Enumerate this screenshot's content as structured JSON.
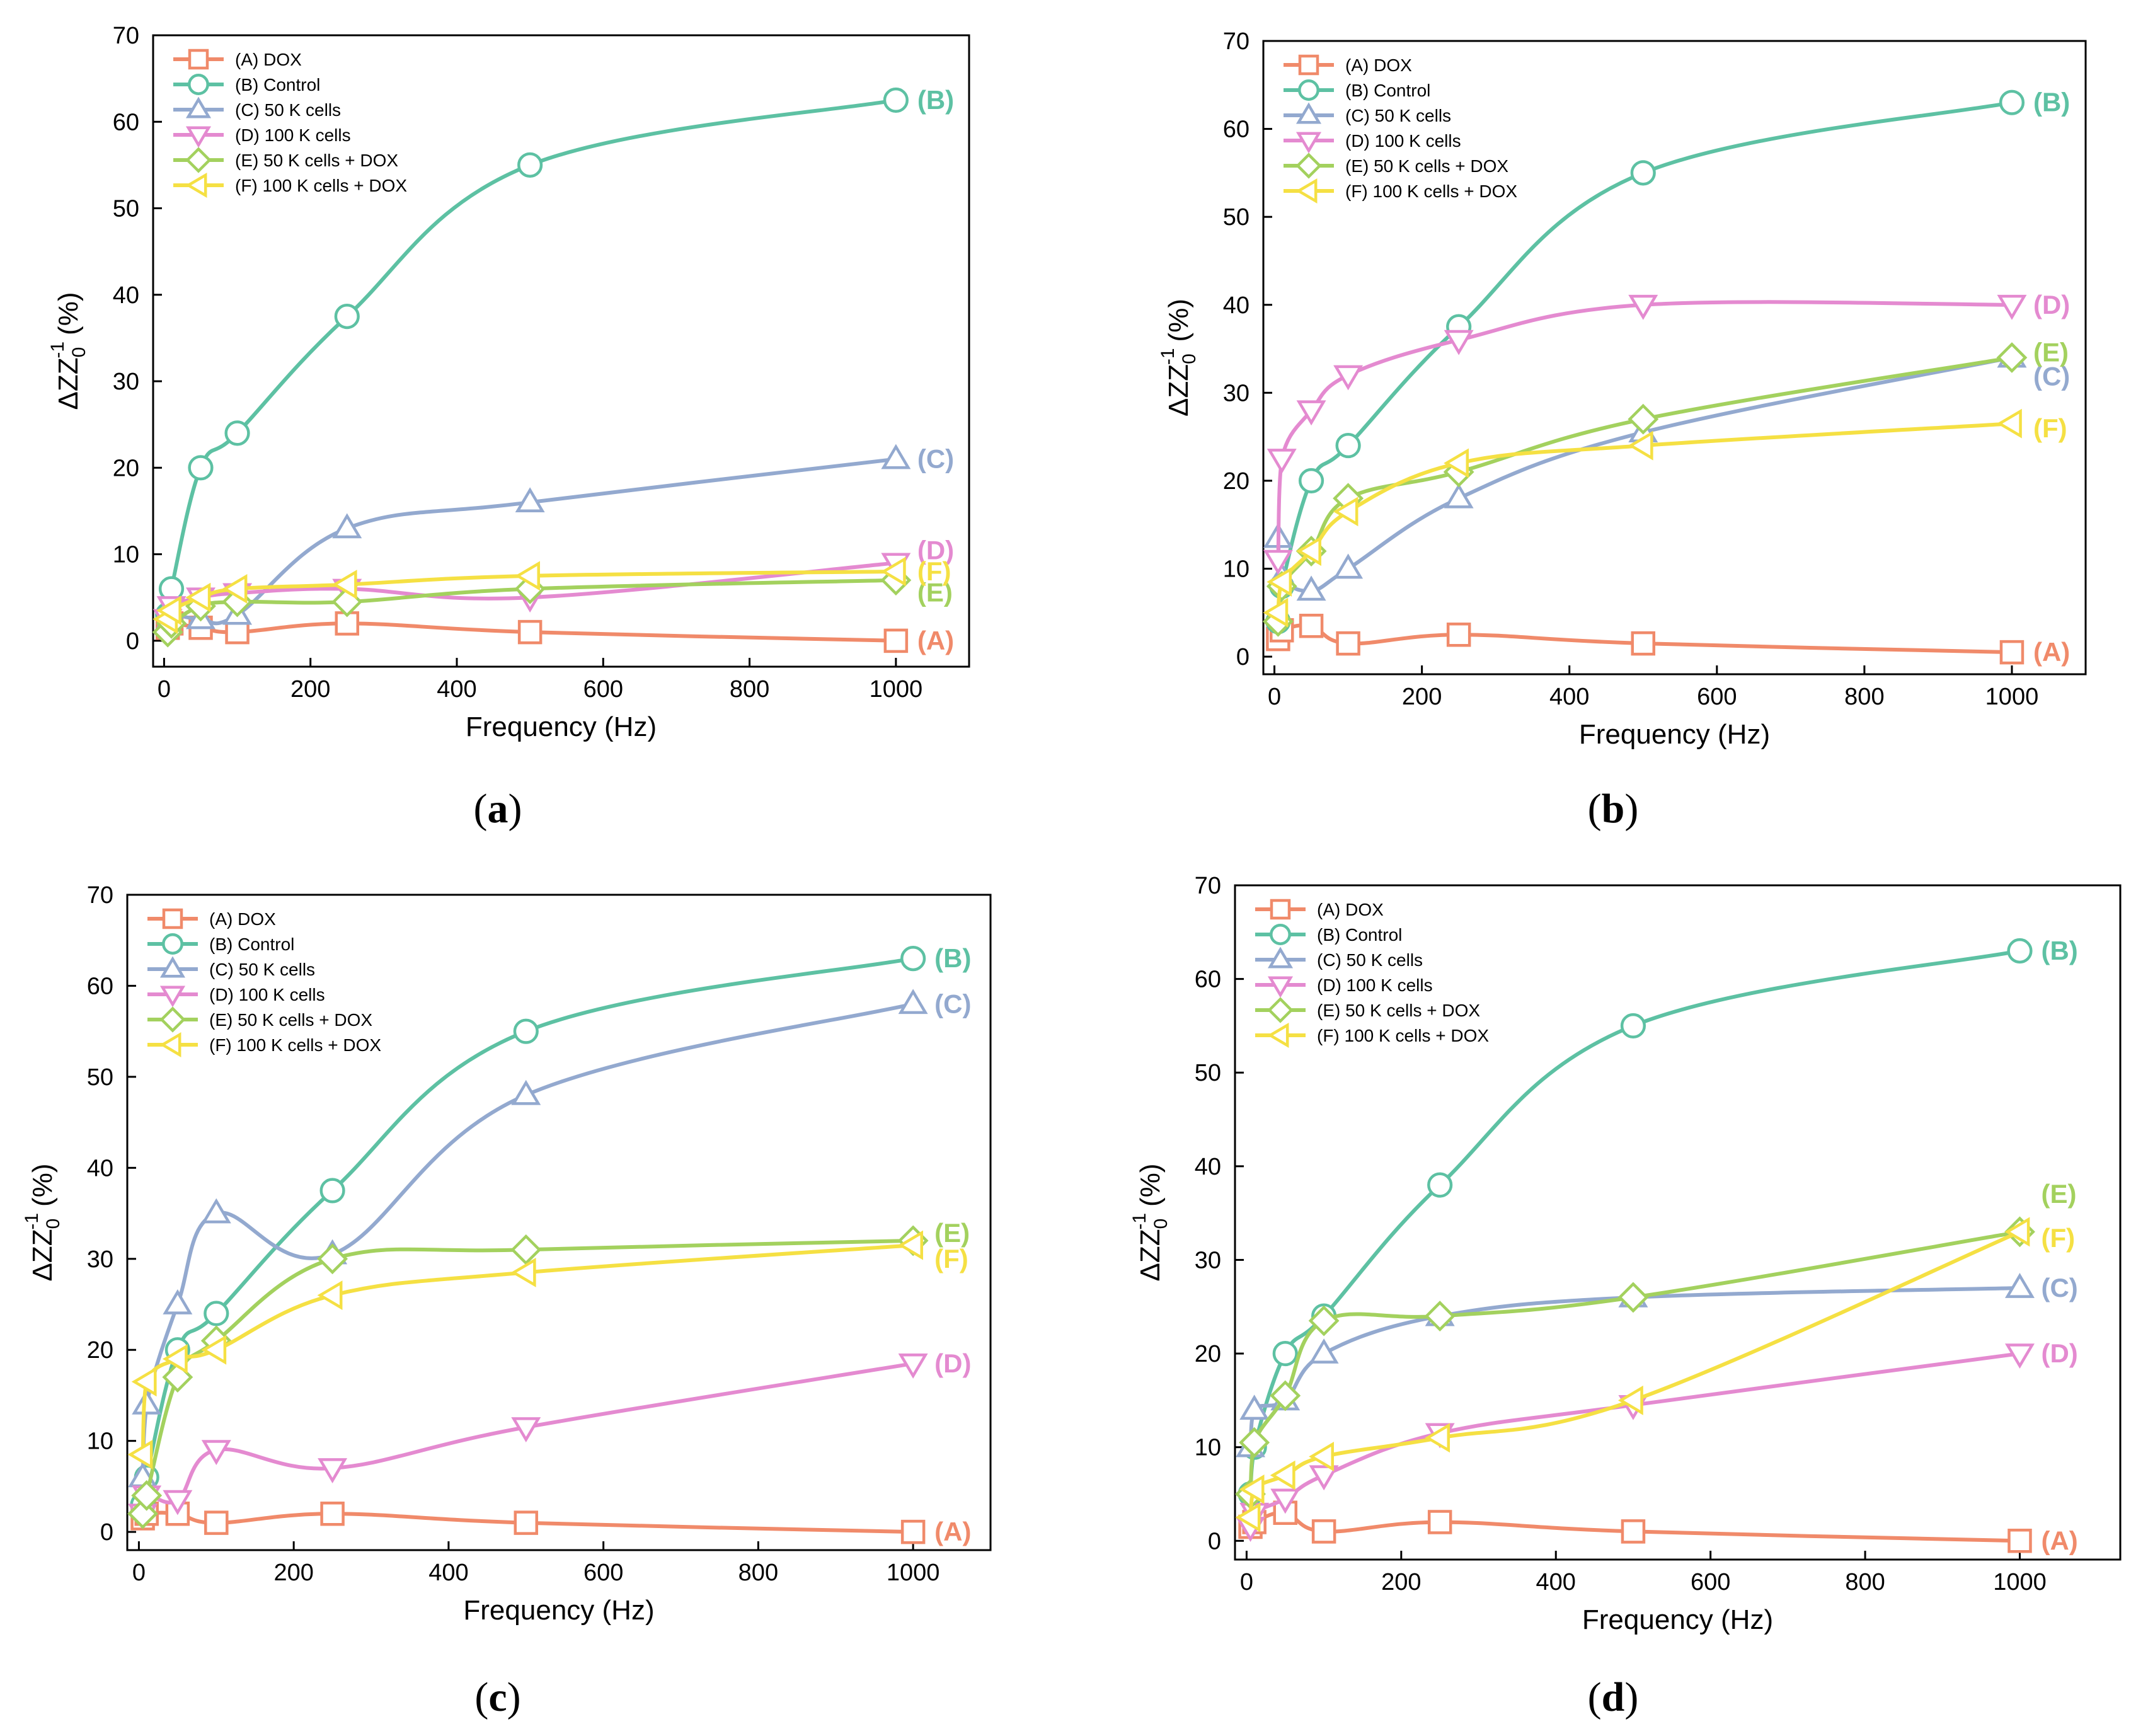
{
  "figure": {
    "colors": {
      "A": "#F08A6A",
      "B": "#5DC1A3",
      "C": "#93A9CF",
      "D": "#E48AD0",
      "E": "#A3D15E",
      "F": "#F5E043"
    },
    "markers": {
      "A": "square",
      "B": "circle",
      "C": "triangle-up",
      "D": "triangle-down",
      "E": "diamond",
      "F": "triangle-left"
    }
  },
  "chart_data": [
    {
      "panel": "a",
      "panel_label": "a",
      "type": "line",
      "xlabel": "Frequency (Hz)",
      "ylabel": "ΔZZ",
      "ylabel_sub": "0",
      "ylabel_sup": "-1",
      "ylabel_unit": "(%)",
      "xlim": [
        -15,
        1100
      ],
      "ylim": [
        -3,
        70
      ],
      "xticks": [
        0,
        200,
        400,
        600,
        800,
        1000
      ],
      "yticks": [
        0,
        10,
        20,
        30,
        40,
        50,
        60,
        70
      ],
      "legend_position": "top-left",
      "series": [
        {
          "key": "A",
          "name": "(A) DOX",
          "end_label": "(A)",
          "x": [
            5,
            10,
            50,
            100,
            250,
            500,
            1000
          ],
          "values": [
            1.5,
            2,
            1.5,
            1,
            2,
            1,
            0
          ]
        },
        {
          "key": "B",
          "name": "(B) Control",
          "end_label": "(B)",
          "x": [
            5,
            10,
            50,
            100,
            250,
            500,
            1000
          ],
          "values": [
            3,
            6,
            20,
            24,
            37.5,
            55,
            62.5
          ]
        },
        {
          "key": "C",
          "name": "(C) 50 K cells",
          "end_label": "(C)",
          "x": [
            5,
            10,
            50,
            100,
            250,
            500,
            1000
          ],
          "values": [
            2,
            3,
            2.5,
            3,
            13,
            16,
            21
          ]
        },
        {
          "key": "D",
          "name": "(D) 100 K cells",
          "end_label": "(D)",
          "x": [
            5,
            10,
            50,
            100,
            250,
            500,
            1000
          ],
          "values": [
            2.5,
            4,
            5,
            5.5,
            6,
            5,
            9
          ]
        },
        {
          "key": "E",
          "name": "(E) 50 K cells + DOX",
          "end_label": "(E)",
          "x": [
            5,
            10,
            50,
            100,
            250,
            500,
            1000
          ],
          "values": [
            1,
            2,
            4,
            4.5,
            4.5,
            6,
            7
          ]
        },
        {
          "key": "F",
          "name": "(F) 100 K cells + DOX",
          "end_label": "(F)",
          "x": [
            5,
            10,
            50,
            100,
            250,
            500,
            1000
          ],
          "values": [
            2.5,
            3.5,
            5,
            6,
            6.5,
            7.5,
            8
          ]
        }
      ]
    },
    {
      "panel": "b",
      "panel_label": "b",
      "type": "line",
      "xlabel": "Frequency (Hz)",
      "ylabel": "ΔZZ",
      "ylabel_sub": "0",
      "ylabel_sup": "-1",
      "ylabel_unit": "(%)",
      "xlim": [
        -15,
        1100
      ],
      "ylim": [
        -2,
        70
      ],
      "xticks": [
        0,
        200,
        400,
        600,
        800,
        1000
      ],
      "yticks": [
        0,
        10,
        20,
        30,
        40,
        50,
        60,
        70
      ],
      "legend_position": "top-left",
      "series": [
        {
          "key": "A",
          "name": "(A) DOX",
          "end_label": "(A)",
          "x": [
            5,
            10,
            50,
            100,
            250,
            500,
            1000
          ],
          "values": [
            2,
            3,
            3.5,
            1.5,
            2.5,
            1.5,
            0.5
          ]
        },
        {
          "key": "B",
          "name": "(B) Control",
          "end_label": "(B)",
          "x": [
            5,
            10,
            50,
            100,
            250,
            500,
            1000
          ],
          "values": [
            4,
            8,
            20,
            24,
            37.5,
            55,
            63
          ]
        },
        {
          "key": "C",
          "name": "(C) 50 K cells",
          "end_label": "(C)",
          "x": [
            5,
            10,
            50,
            100,
            250,
            500,
            1000
          ],
          "values": [
            13.5,
            9,
            7.5,
            10,
            18,
            25.5,
            34
          ]
        },
        {
          "key": "D",
          "name": "(D) 100 K cells",
          "end_label": "(D)",
          "x": [
            5,
            10,
            50,
            100,
            250,
            500,
            1000
          ],
          "values": [
            11,
            22.5,
            28,
            32,
            36,
            40,
            40
          ]
        },
        {
          "key": "E",
          "name": "(E) 50 K cells + DOX",
          "end_label": "(E)",
          "x": [
            5,
            10,
            50,
            100,
            250,
            500,
            1000
          ],
          "values": [
            4,
            8,
            12,
            18,
            21,
            27,
            34
          ]
        },
        {
          "key": "F",
          "name": "(F) 100 K cells + DOX",
          "end_label": "(F)",
          "x": [
            5,
            10,
            50,
            100,
            250,
            500,
            1000
          ],
          "values": [
            5,
            8.5,
            12,
            16.5,
            22,
            24,
            26.5
          ]
        }
      ]
    },
    {
      "panel": "c",
      "panel_label": "c",
      "type": "line",
      "xlabel": "Frequency (Hz)",
      "ylabel": "ΔZZ",
      "ylabel_sub": "0",
      "ylabel_sup": "-1",
      "ylabel_unit": "(%)",
      "xlim": [
        -15,
        1100
      ],
      "ylim": [
        -2,
        70
      ],
      "xticks": [
        0,
        200,
        400,
        600,
        800,
        1000
      ],
      "yticks": [
        0,
        10,
        20,
        30,
        40,
        50,
        60,
        70
      ],
      "legend_position": "top-left",
      "series": [
        {
          "key": "A",
          "name": "(A) DOX",
          "end_label": "(A)",
          "x": [
            5,
            10,
            50,
            100,
            250,
            500,
            1000
          ],
          "values": [
            1.5,
            2,
            2,
            1,
            2,
            1,
            0
          ]
        },
        {
          "key": "B",
          "name": "(B) Control",
          "end_label": "(B)",
          "x": [
            5,
            10,
            50,
            100,
            250,
            500,
            1000
          ],
          "values": [
            3,
            6,
            20,
            24,
            37.5,
            55,
            63
          ]
        },
        {
          "key": "C",
          "name": "(C) 50 K cells",
          "end_label": "(C)",
          "x": [
            5,
            10,
            50,
            100,
            250,
            500,
            1000
          ],
          "values": [
            6,
            14,
            25,
            35,
            30.5,
            48,
            58
          ]
        },
        {
          "key": "D",
          "name": "(D) 100 K cells",
          "end_label": "(D)",
          "x": [
            5,
            10,
            50,
            100,
            250,
            500,
            1000
          ],
          "values": [
            2,
            4,
            3.5,
            9,
            7,
            11.5,
            18.5
          ]
        },
        {
          "key": "E",
          "name": "(E) 50 K cells + DOX",
          "end_label": "(E)",
          "x": [
            5,
            10,
            50,
            100,
            250,
            500,
            1000
          ],
          "values": [
            2,
            4,
            17,
            21,
            30,
            31,
            32
          ]
        },
        {
          "key": "F",
          "name": "(F) 100 K cells + DOX",
          "end_label": "(F)",
          "x": [
            5,
            10,
            50,
            100,
            250,
            500,
            1000
          ],
          "values": [
            8.5,
            16.5,
            19,
            20,
            26,
            28.5,
            31.5
          ]
        }
      ]
    },
    {
      "panel": "d",
      "panel_label": "d",
      "type": "line",
      "xlabel": "Frequency (Hz)",
      "ylabel": "ΔZZ",
      "ylabel_sub": "0",
      "ylabel_sup": "-1",
      "ylabel_unit": "(%)",
      "xlim": [
        -15,
        1130
      ],
      "ylim": [
        -2,
        70
      ],
      "xticks": [
        0,
        200,
        400,
        600,
        800,
        1000
      ],
      "yticks": [
        0,
        10,
        20,
        30,
        40,
        50,
        60,
        70
      ],
      "legend_position": "top-left",
      "series": [
        {
          "key": "A",
          "name": "(A) DOX",
          "end_label": "(A)",
          "x": [
            5,
            10,
            50,
            100,
            250,
            500,
            1000
          ],
          "values": [
            1.5,
            2,
            3,
            1,
            2,
            1,
            0
          ]
        },
        {
          "key": "B",
          "name": "(B) Control",
          "end_label": "(B)",
          "x": [
            5,
            10,
            50,
            100,
            250,
            500,
            1000
          ],
          "values": [
            5,
            10,
            20,
            24,
            38,
            55,
            63
          ]
        },
        {
          "key": "C",
          "name": "(C) 50 K cells",
          "end_label": "(C)",
          "x": [
            5,
            10,
            50,
            100,
            250,
            500,
            1000
          ],
          "values": [
            10,
            14,
            15,
            20,
            24,
            26,
            27
          ]
        },
        {
          "key": "D",
          "name": "(D) 100 K cells",
          "end_label": "(D)",
          "x": [
            5,
            10,
            50,
            100,
            250,
            500,
            1000
          ],
          "values": [
            1.5,
            3,
            4.5,
            7,
            11.5,
            14.5,
            20
          ]
        },
        {
          "key": "E",
          "name": "(E) 50 K cells + DOX",
          "end_label": "(E)",
          "x": [
            5,
            10,
            50,
            100,
            250,
            500,
            1000
          ],
          "values": [
            5,
            10.5,
            15.5,
            23.5,
            24,
            26,
            33
          ]
        },
        {
          "key": "F",
          "name": "(F) 100 K cells + DOX",
          "end_label": "(F)",
          "x": [
            5,
            10,
            50,
            100,
            250,
            500,
            1000
          ],
          "values": [
            2.5,
            5.5,
            7,
            9,
            11,
            15,
            33
          ]
        }
      ]
    }
  ]
}
